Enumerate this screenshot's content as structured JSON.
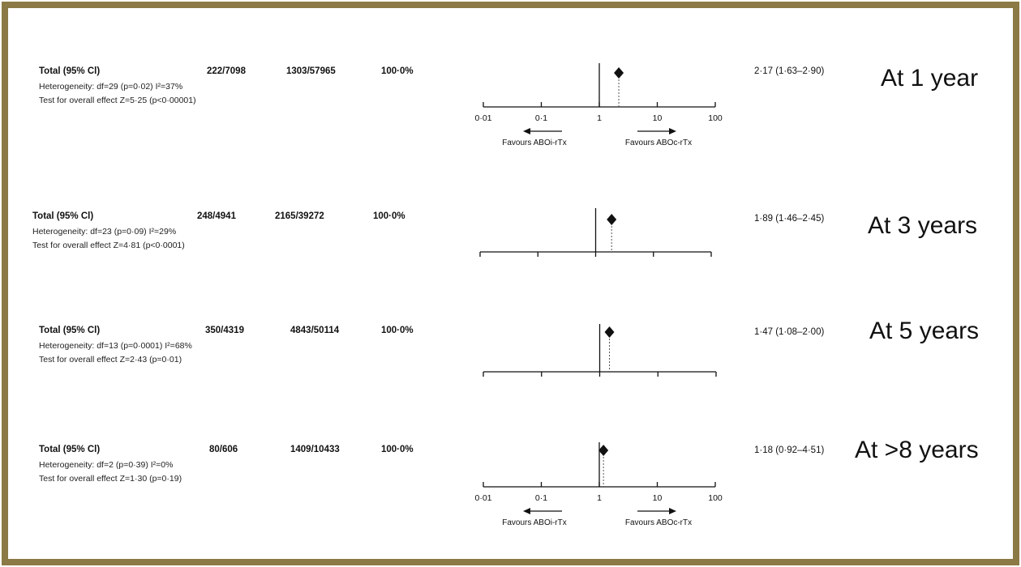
{
  "accent_colors": {
    "frame": "#8b7a45",
    "ink": "#111111"
  },
  "chart_data": [
    {
      "type": "forest",
      "label": "At 1 year",
      "total_label": "Total (95% Cl)",
      "events_abo_incompatible": "222/7098",
      "events_abo_compatible": "1303/57965",
      "weight": "100·0%",
      "heterogeneity": "Heterogeneity: df=29 (p=0·02) I²=37%",
      "overall_effect": "Test for overall effect Z=5·25 (p<0·00001)",
      "estimate": 2.17,
      "ci_low": 1.63,
      "ci_high": 2.9,
      "ci_text": "2·17 (1·63–2·90)",
      "x_scale": "log",
      "xlim": [
        0.01,
        100
      ],
      "ticks": [
        0.01,
        0.1,
        1,
        10,
        100
      ],
      "tick_labels": [
        "0·01",
        "0·1",
        "1",
        "10",
        "100"
      ],
      "favours_left": "Favours ABOi-rTx",
      "favours_right": "Favours ABOc-rTx"
    },
    {
      "type": "forest",
      "label": "At 3 years",
      "total_label": "Total (95% Cl)",
      "events_abo_incompatible": "248/4941",
      "events_abo_compatible": "2165/39272",
      "weight": "100·0%",
      "heterogeneity": "Heterogeneity: df=23 (p=0·09) I²=29%",
      "overall_effect": "Test for overall effect Z=4·81 (p<0·0001)",
      "estimate": 1.89,
      "ci_low": 1.46,
      "ci_high": 2.45,
      "ci_text": "1·89 (1·46–2·45)",
      "x_scale": "log",
      "xlim": [
        0.01,
        100
      ],
      "ticks": [
        0.01,
        0.1,
        1,
        10,
        100
      ],
      "tick_labels": []
    },
    {
      "type": "forest",
      "label": "At 5 years",
      "total_label": "Total (95% Cl)",
      "events_abo_incompatible": "350/4319",
      "events_abo_compatible": "4843/50114",
      "weight": "100·0%",
      "heterogeneity": "Heterogeneity: df=13 (p=0·0001) I²=68%",
      "overall_effect": "Test for overall effect Z=2·43 (p=0·01)",
      "estimate": 1.47,
      "ci_low": 1.08,
      "ci_high": 2.0,
      "ci_text": "1·47 (1·08–2·00)",
      "x_scale": "log",
      "xlim": [
        0.01,
        100
      ],
      "ticks": [
        0.01,
        0.1,
        1,
        10,
        100
      ],
      "tick_labels": []
    },
    {
      "type": "forest",
      "label": "At >8 years",
      "total_label": "Total (95% Cl)",
      "events_abo_incompatible": "80/606",
      "events_abo_compatible": "1409/10433",
      "weight": "100·0%",
      "heterogeneity": "Heterogeneity: df=2 (p=0·39) I²=0%",
      "overall_effect": "Test for overall effect Z=1·30 (p=0·19)",
      "estimate": 1.18,
      "ci_low": 0.92,
      "ci_high": 4.51,
      "ci_text": "1·18 (0·92–4·51)",
      "x_scale": "log",
      "xlim": [
        0.01,
        100
      ],
      "ticks": [
        0.01,
        0.1,
        1,
        10,
        100
      ],
      "tick_labels": [
        "0·01",
        "0·1",
        "1",
        "10",
        "100"
      ],
      "favours_left": "Favours ABOi-rTx",
      "favours_right": "Favours ABOc-rTx"
    }
  ]
}
